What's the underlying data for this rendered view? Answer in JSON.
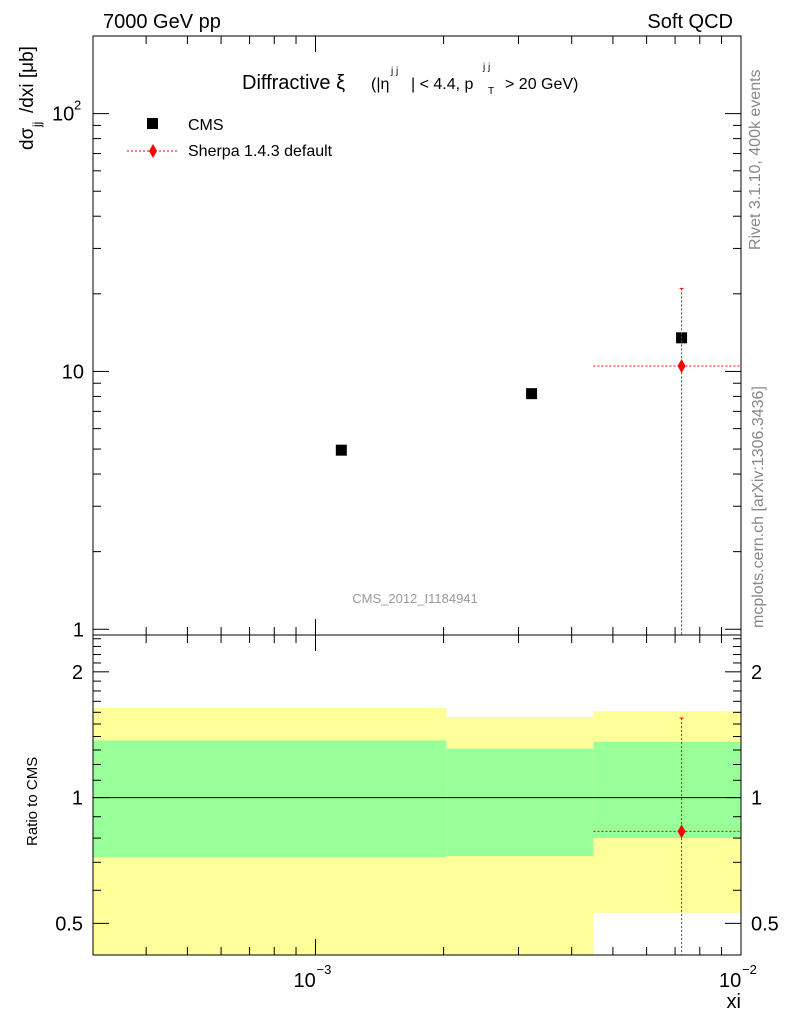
{
  "header": {
    "energy": "7000 GeV pp",
    "process": "Soft QCD"
  },
  "sidebar": {
    "rivet": "Rivet 3.1.10,  400k events",
    "mcplots": "mcplots.cern.ch [arXiv:1306.3436]"
  },
  "colors": {
    "data": "#000000",
    "mc": "#ff0000",
    "band_inner": "#99ff99",
    "band_outer": "#ffff99"
  },
  "chart_data": {
    "type": "scatter",
    "title": "Diffractive ξ",
    "title_cut": "(|η^{j1j2}| < 4.4, p_T^{j1j2} > 20 GeV)",
    "title_parts": {
      "xi": "ξ",
      "open": "(|η",
      "eta_sup": "j j",
      "cut1": "| < 4.4, p",
      "pt_sub": "T",
      "pt_sup": "j j",
      "cut2": "> 20 GeV)"
    },
    "analysis_id": "CMS_2012_I1184941",
    "xlabel": "xi",
    "ylabel": "dσ",
    "ylabel_sub": "jj",
    "ylabel_rest": "/dxi [μb]",
    "ratio_ylabel": "Ratio to CMS",
    "x_scale": "log",
    "y_scale": "log",
    "xlim": [
      0.0003,
      0.01
    ],
    "ylim": [
      0.95,
      200
    ],
    "ratio_ylim": [
      0.42,
      2.45
    ],
    "x_ticks": [
      {
        "value": 0.001,
        "mant": "10",
        "exp": "−3"
      },
      {
        "value": 0.01,
        "mant": "10",
        "exp": "−2"
      }
    ],
    "y_ticks": [
      {
        "value": 1,
        "label": "1"
      },
      {
        "value": 10,
        "label": "10"
      },
      {
        "value": 100,
        "label": "10",
        "exp": "2"
      }
    ],
    "ratio_ticks": [
      {
        "value": 0.5,
        "label": "0.5"
      },
      {
        "value": 1,
        "label": "1"
      },
      {
        "value": 2,
        "label": "2"
      }
    ],
    "legend": [
      "CMS",
      "Sherpa 1.4.3 default"
    ],
    "legend_position": "top-left",
    "series": [
      {
        "name": "CMS",
        "marker": "square",
        "color": "#000000",
        "points": [
          {
            "x": 0.00115,
            "y": 4.95
          },
          {
            "x": 0.00322,
            "y": 8.2
          },
          {
            "x": 0.00725,
            "y": 13.5
          }
        ]
      },
      {
        "name": "Sherpa 1.4.3 default",
        "marker": "diamond",
        "color": "#ff0000",
        "points": [
          {
            "x": 0.00725,
            "y": 10.5,
            "xlo": 0.0045,
            "xhi": 0.0102,
            "ylo": 0.9,
            "yhi": 21
          }
        ]
      }
    ],
    "ratio_bands": [
      {
        "xlo": 0.0003,
        "xhi": 0.00203,
        "inner": [
          0.72,
          1.37
        ],
        "outer": [
          0.42,
          1.64
        ]
      },
      {
        "xlo": 0.00203,
        "xhi": 0.0045,
        "inner": [
          0.725,
          1.31
        ],
        "outer": [
          0.42,
          1.56
        ]
      },
      {
        "xlo": 0.0045,
        "xhi": 0.0102,
        "inner": [
          0.8,
          1.36
        ],
        "outer": [
          0.53,
          1.61
        ]
      }
    ],
    "ratio_points": [
      {
        "x": 0.00725,
        "y": 0.83,
        "xlo": 0.0045,
        "xhi": 0.0102,
        "ylo": 0.42,
        "yhi": 1.55
      }
    ]
  }
}
